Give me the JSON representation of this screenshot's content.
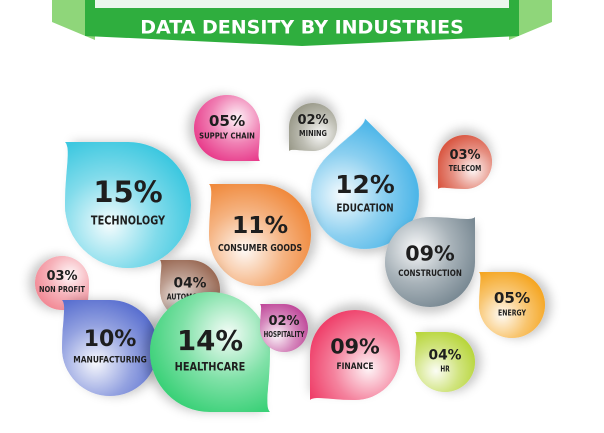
{
  "chart_data": {
    "type": "bubble",
    "title": "DATA DENSITY BY INDUSTRIES",
    "categories": [
      "SUPPLY CHAIN",
      "MINING",
      "TELECOM",
      "TECHNOLOGY",
      "EDUCATION",
      "CONSUMER GOODS",
      "CONSTRUCTION",
      "NON PROFIT",
      "AUTOMOTIVE",
      "ENERGY",
      "MANUFACTURING",
      "HEALTHCARE",
      "HOSPITALITY",
      "FINANCE",
      "HR"
    ],
    "values": [
      5,
      2,
      3,
      15,
      12,
      11,
      9,
      3,
      4,
      5,
      10,
      14,
      2,
      9,
      4
    ],
    "value_labels": [
      "05%",
      "02%",
      "03%",
      "15%",
      "12%",
      "11%",
      "09%",
      "03%",
      "04%",
      "05%",
      "10%",
      "14%",
      "02%",
      "09%",
      "04%"
    ],
    "colors": [
      "#e83e8c",
      "#9a9a8a",
      "#d9553f",
      "#3cc8e0",
      "#4db6e8",
      "#f08a3c",
      "#7a8a94",
      "#f28a96",
      "#9a6a55",
      "#f5a623",
      "#5a6fd0",
      "#3bd178",
      "#c04a9a",
      "#ef3f6a",
      "#b8d63a"
    ]
  }
}
